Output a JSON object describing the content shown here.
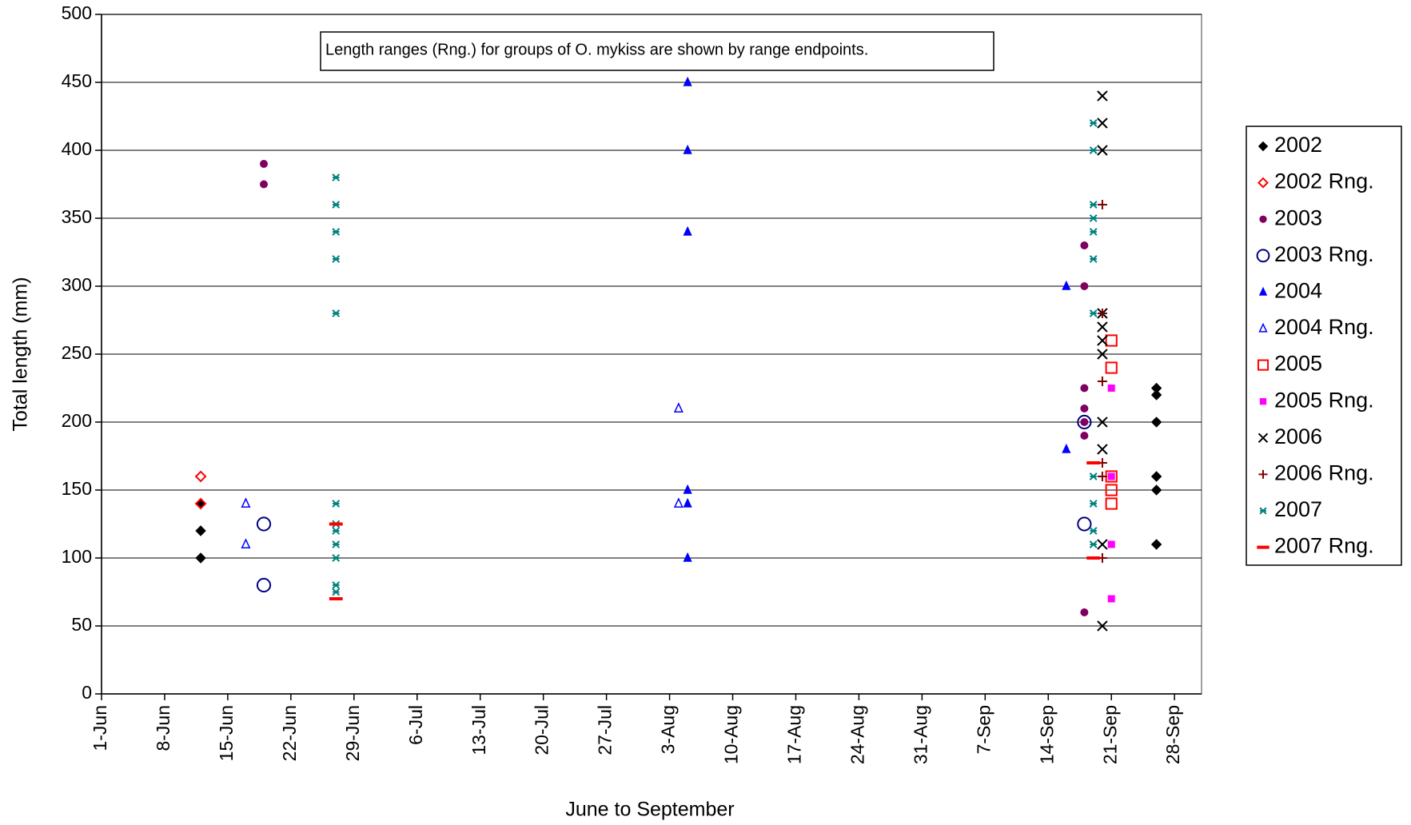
{
  "chart_data": {
    "type": "scatter",
    "annotation": "Length ranges (Rng.) for groups of O. mykiss are shown by range endpoints.",
    "x_label": "June to September",
    "y_label": "Total length (mm)",
    "xlim": [
      "1-Jun",
      "1-Oct"
    ],
    "xticks": [
      "1-Jun",
      "8-Jun",
      "15-Jun",
      "22-Jun",
      "29-Jun",
      "6-Jul",
      "13-Jul",
      "20-Jul",
      "27-Jul",
      "3-Aug",
      "10-Aug",
      "17-Aug",
      "24-Aug",
      "31-Aug",
      "7-Sep",
      "14-Sep",
      "21-Sep",
      "28-Sep"
    ],
    "ylim": [
      0,
      500
    ],
    "yticks": [
      0,
      50,
      100,
      150,
      200,
      250,
      300,
      350,
      400,
      450,
      500
    ],
    "grid": true,
    "legend": "right",
    "series": [
      {
        "name": "2002",
        "color": "#000000",
        "marker": "diamond",
        "x": [
          "12-Jun",
          "12-Jun",
          "12-Jun",
          "26-Sep",
          "26-Sep",
          "26-Sep",
          "26-Sep",
          "26-Sep",
          "26-Sep"
        ],
        "values": [
          140,
          120,
          100,
          225,
          220,
          200,
          160,
          150,
          110
        ]
      },
      {
        "name": "2002 Rng.",
        "color": "#ff0000",
        "marker": "diamond-open",
        "x": [
          "12-Jun",
          "12-Jun"
        ],
        "values": [
          160,
          140
        ]
      },
      {
        "name": "2003",
        "color": "#800060",
        "marker": "dot",
        "x": [
          "19-Jun",
          "19-Jun",
          "18-Sep",
          "18-Sep",
          "18-Sep",
          "18-Sep",
          "18-Sep",
          "18-Sep",
          "18-Sep"
        ],
        "values": [
          390,
          375,
          330,
          300,
          225,
          210,
          200,
          190,
          60
        ]
      },
      {
        "name": "2003 Rng.",
        "color": "#000080",
        "marker": "circle-open",
        "x": [
          "19-Jun",
          "19-Jun",
          "18-Sep",
          "18-Sep"
        ],
        "values": [
          125,
          80,
          200,
          125
        ]
      },
      {
        "name": "2004",
        "color": "#0000ff",
        "marker": "triangle",
        "x": [
          "5-Aug",
          "5-Aug",
          "5-Aug",
          "5-Aug",
          "5-Aug",
          "5-Aug",
          "16-Sep",
          "16-Sep"
        ],
        "values": [
          450,
          400,
          340,
          150,
          140,
          100,
          300,
          180
        ]
      },
      {
        "name": "2004 Rng.",
        "color": "#0000ff",
        "marker": "triangle-open",
        "x": [
          "17-Jun",
          "17-Jun",
          "4-Aug",
          "4-Aug"
        ],
        "values": [
          140,
          110,
          210,
          140
        ]
      },
      {
        "name": "2005",
        "color": "#ff0000",
        "marker": "square-open",
        "x": [
          "21-Sep",
          "21-Sep",
          "21-Sep",
          "21-Sep",
          "21-Sep"
        ],
        "values": [
          260,
          240,
          160,
          150,
          140
        ]
      },
      {
        "name": "2005 Rng.",
        "color": "#ff00ff",
        "marker": "square",
        "x": [
          "21-Sep",
          "21-Sep",
          "21-Sep",
          "21-Sep"
        ],
        "values": [
          225,
          160,
          110,
          70
        ]
      },
      {
        "name": "2006",
        "color": "#000000",
        "marker": "x",
        "x": [
          "20-Sep",
          "20-Sep",
          "20-Sep",
          "20-Sep",
          "20-Sep",
          "20-Sep",
          "20-Sep",
          "20-Sep",
          "20-Sep",
          "20-Sep",
          "20-Sep"
        ],
        "values": [
          440,
          420,
          400,
          280,
          270,
          260,
          250,
          200,
          180,
          110,
          50
        ]
      },
      {
        "name": "2006 Rng.",
        "color": "#800000",
        "marker": "plus",
        "x": [
          "20-Sep",
          "20-Sep",
          "20-Sep",
          "20-Sep",
          "20-Sep",
          "20-Sep"
        ],
        "values": [
          360,
          280,
          230,
          170,
          160,
          100
        ]
      },
      {
        "name": "2007",
        "color": "#008080",
        "marker": "star",
        "x": [
          "27-Jun",
          "27-Jun",
          "27-Jun",
          "27-Jun",
          "27-Jun",
          "27-Jun",
          "27-Jun",
          "27-Jun",
          "27-Jun",
          "27-Jun",
          "27-Jun",
          "27-Jun",
          "19-Sep",
          "19-Sep",
          "19-Sep",
          "19-Sep",
          "19-Sep",
          "19-Sep",
          "19-Sep",
          "19-Sep",
          "19-Sep",
          "19-Sep",
          "19-Sep"
        ],
        "values": [
          380,
          360,
          340,
          320,
          280,
          140,
          125,
          120,
          110,
          100,
          80,
          75,
          420,
          400,
          360,
          350,
          340,
          320,
          280,
          160,
          140,
          120,
          110
        ]
      },
      {
        "name": "2007 Rng.",
        "color": "#ff0000",
        "marker": "dash",
        "x": [
          "27-Jun",
          "27-Jun",
          "19-Sep",
          "19-Sep"
        ],
        "values": [
          125,
          70,
          170,
          100
        ]
      }
    ]
  }
}
